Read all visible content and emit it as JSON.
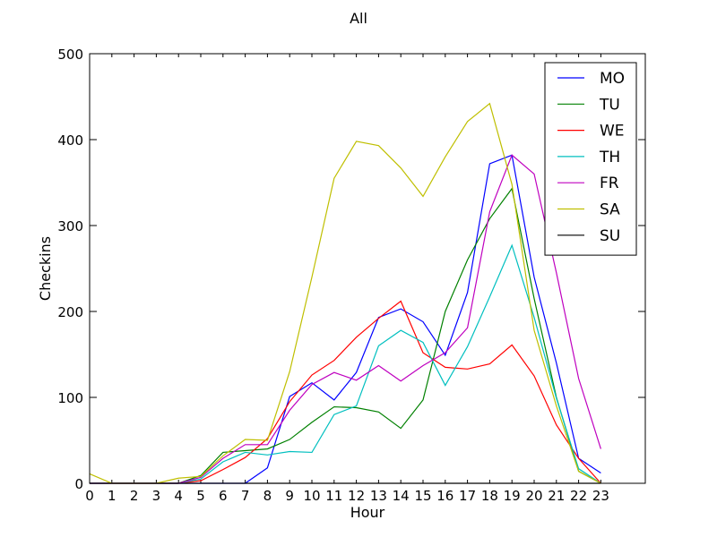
{
  "chart_data": {
    "type": "line",
    "title": "All",
    "xlabel": "Hour",
    "ylabel": "Checkins",
    "xlim": [
      0,
      25
    ],
    "ylim": [
      0,
      500
    ],
    "x": [
      0,
      1,
      2,
      3,
      4,
      5,
      6,
      7,
      8,
      9,
      10,
      11,
      12,
      13,
      14,
      15,
      16,
      17,
      18,
      19,
      20,
      21,
      22,
      23
    ],
    "xticks": [
      0,
      1,
      2,
      3,
      4,
      5,
      6,
      7,
      8,
      9,
      10,
      11,
      12,
      13,
      14,
      15,
      16,
      17,
      18,
      19,
      20,
      21,
      22,
      23
    ],
    "yticks": [
      0,
      100,
      200,
      300,
      400,
      500
    ],
    "grid": false,
    "legend_position": "top-right",
    "series": [
      {
        "name": "MO",
        "color": "#0000ff",
        "values": [
          0,
          0,
          0,
          0,
          0,
          0,
          0,
          0,
          18,
          101,
          117,
          97,
          129,
          193,
          203,
          188,
          149,
          222,
          372,
          382,
          240,
          140,
          29,
          12
        ]
      },
      {
        "name": "TU",
        "color": "#008000",
        "values": [
          0,
          0,
          0,
          0,
          0,
          9,
          36,
          38,
          40,
          51,
          71,
          89,
          88,
          83,
          64,
          97,
          200,
          260,
          308,
          343,
          215,
          100,
          14,
          0
        ]
      },
      {
        "name": "WE",
        "color": "#ff0000",
        "values": [
          0,
          0,
          0,
          0,
          0,
          3,
          16,
          30,
          52,
          95,
          126,
          143,
          170,
          192,
          212,
          152,
          135,
          133,
          139,
          161,
          125,
          68,
          29,
          0
        ]
      },
      {
        "name": "TH",
        "color": "#00bfbf",
        "values": [
          0,
          0,
          0,
          0,
          0,
          5,
          25,
          36,
          33,
          37,
          36,
          80,
          90,
          160,
          178,
          164,
          114,
          159,
          217,
          277,
          193,
          99,
          17,
          0
        ]
      },
      {
        "name": "FR",
        "color": "#bf00bf",
        "values": [
          0,
          0,
          0,
          0,
          0,
          7,
          29,
          45,
          45,
          85,
          115,
          129,
          120,
          137,
          119,
          137,
          152,
          181,
          316,
          382,
          360,
          245,
          122,
          40
        ]
      },
      {
        "name": "SA",
        "color": "#bfbf00",
        "values": [
          11,
          0,
          0,
          0,
          6,
          8,
          32,
          51,
          50,
          130,
          240,
          355,
          398,
          393,
          367,
          334,
          380,
          421,
          442,
          348,
          178,
          90,
          14,
          0
        ]
      },
      {
        "name": "SU",
        "color": "#000000",
        "values": [
          0,
          0,
          0,
          0,
          0,
          0,
          0,
          0,
          0,
          0,
          0,
          0,
          0,
          0,
          0,
          0,
          0,
          0,
          0,
          0,
          0,
          0,
          0,
          0
        ]
      }
    ]
  }
}
